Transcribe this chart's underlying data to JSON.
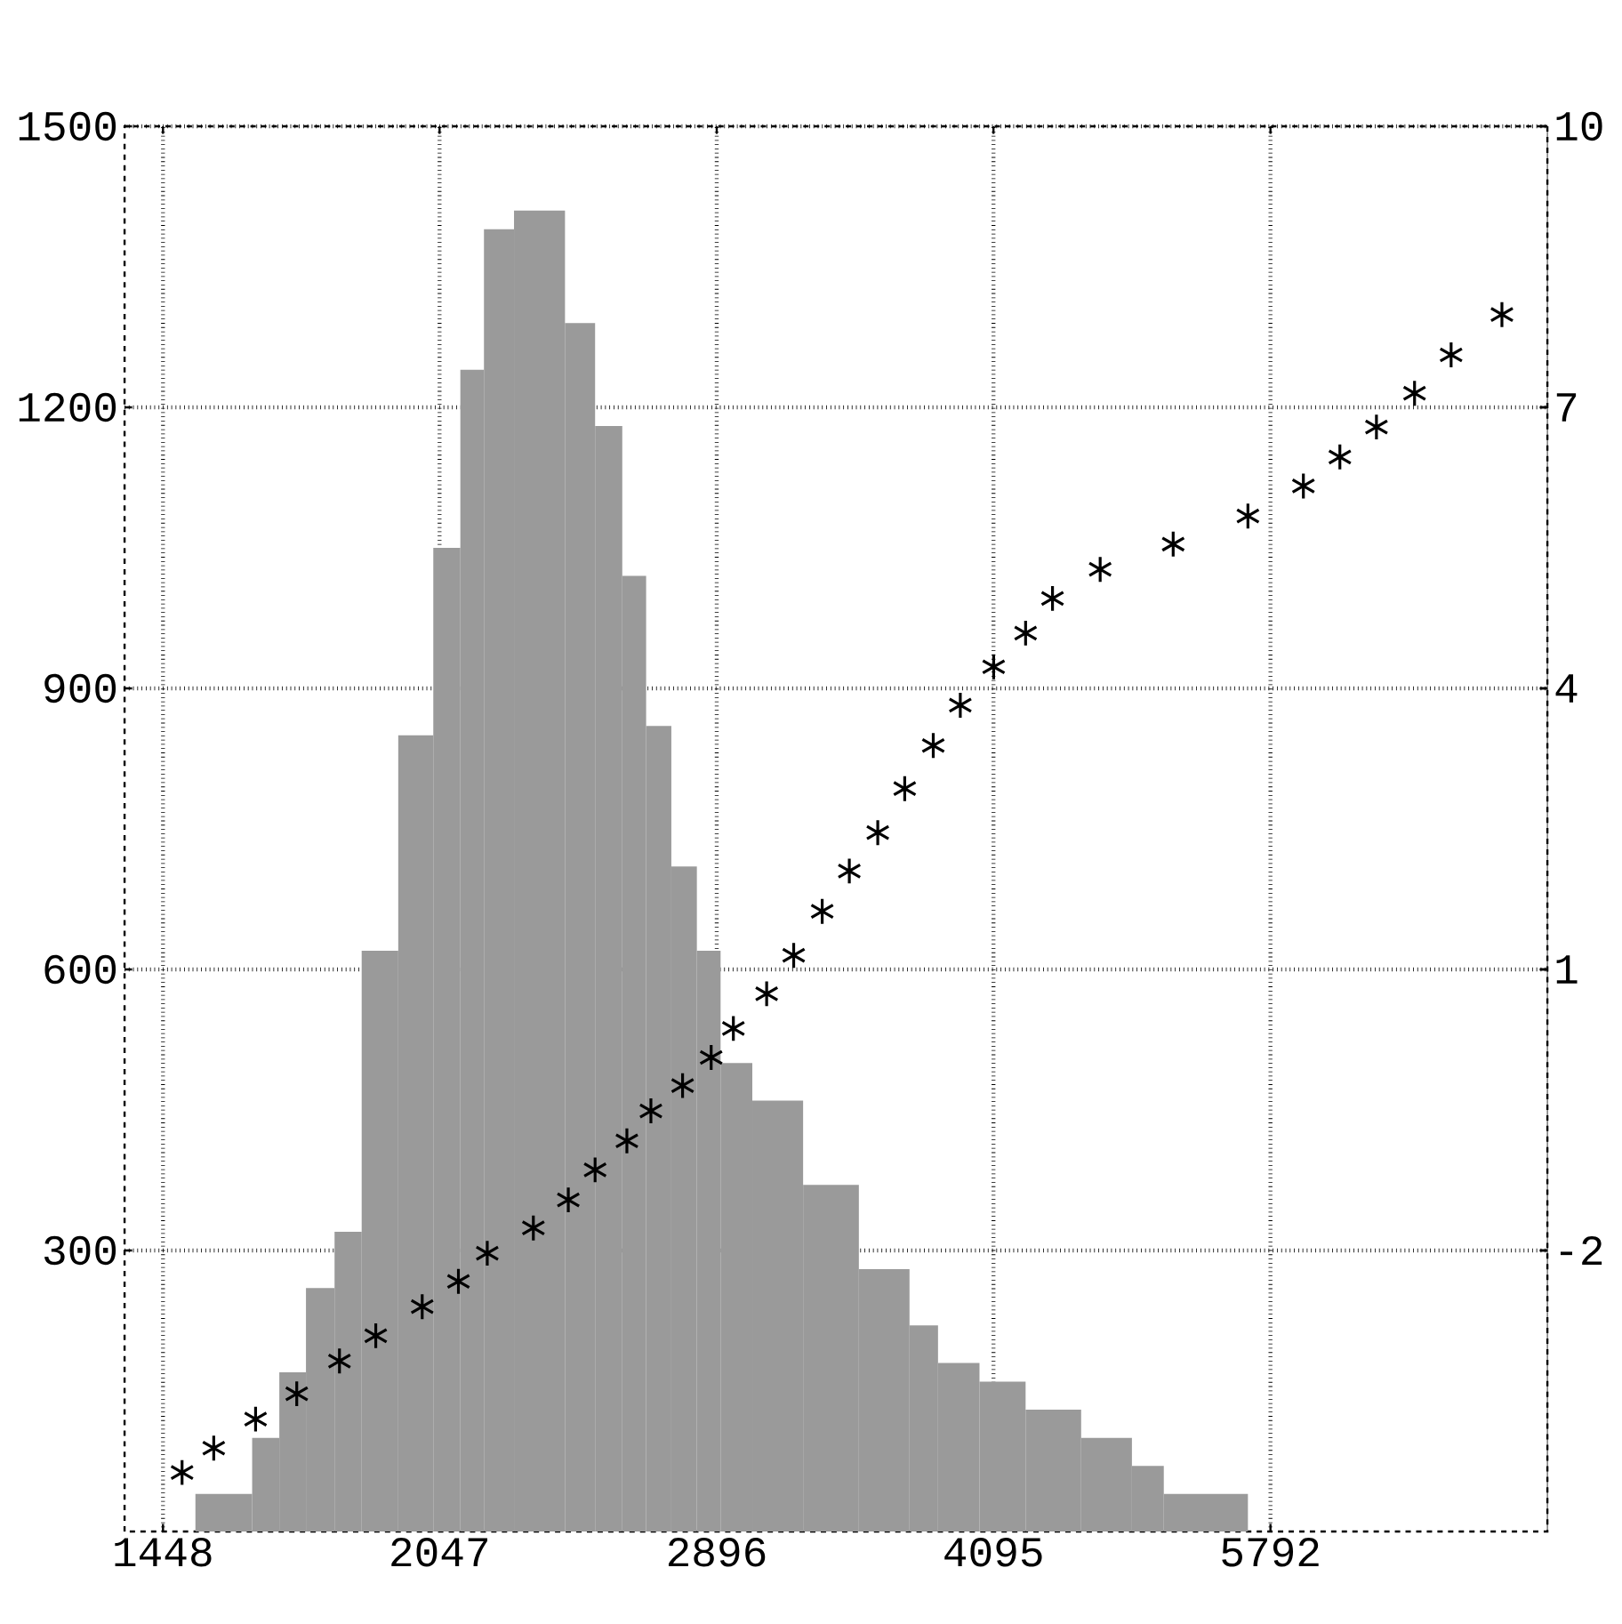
{
  "chart_data": {
    "type": "histogram",
    "log": "x",
    "grid": true,
    "xlim": [
      1380,
      8192
    ],
    "xticks": [
      1448,
      2047,
      2896,
      4095,
      5792
    ],
    "ylim": [
      0,
      1500
    ],
    "yticks": [
      300,
      600,
      900,
      1200,
      1500
    ],
    "y2lim": [
      -5,
      10
    ],
    "y2ticks": [
      -2,
      1,
      4,
      7,
      10
    ],
    "series": [
      {
        "color": "#9a9a9a",
        "bins": [
          1508,
          1619,
          1675,
          1732,
          1795,
          1857,
          1944,
          2031,
          2101,
          2164,
          2247,
          2395,
          2487,
          2573,
          2651,
          2736,
          2825,
          2910,
          3028,
          3227,
          3460,
          3687,
          3821,
          4024,
          4263,
          4570,
          4870,
          5068,
          5631
        ],
        "values": [
          40,
          100,
          170,
          260,
          320,
          620,
          850,
          1050,
          1240,
          1390,
          1410,
          1290,
          1180,
          1020,
          860,
          710,
          620,
          500,
          460,
          370,
          280,
          220,
          180,
          160,
          130,
          100,
          70,
          40
        ]
      },
      {
        "type": "scatter",
        "axis": "y2",
        "marker": "cross",
        "color": "#000000",
        "x": [
          1483,
          1543,
          1626,
          1712,
          1806,
          1890,
          2003,
          2096,
          2173,
          2302,
          2405,
          2487,
          2588,
          2667,
          2775,
          2876,
          2957,
          3083,
          3189,
          3305,
          3419,
          3543,
          3665,
          3798,
          3929,
          4096,
          4263,
          4409,
          4680,
          5128,
          5631,
          6036,
          6318,
          6614,
          6937,
          7262,
          7740
        ],
        "values": [
          -4.37,
          -4.11,
          -3.8,
          -3.53,
          -3.18,
          -2.91,
          -2.6,
          -2.33,
          -2.03,
          -1.76,
          -1.46,
          -1.14,
          -0.83,
          -0.51,
          -0.24,
          0.06,
          0.37,
          0.74,
          1.15,
          1.62,
          2.05,
          2.46,
          2.93,
          3.39,
          3.82,
          4.23,
          4.59,
          4.96,
          5.27,
          5.54,
          5.84,
          6.16,
          6.47,
          6.79,
          7.15,
          7.56,
          7.99
        ]
      }
    ]
  }
}
